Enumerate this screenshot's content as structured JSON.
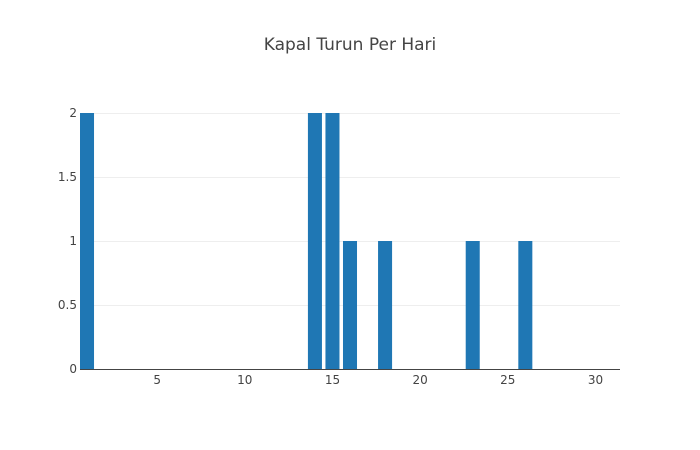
{
  "chart_data": {
    "type": "bar",
    "title": "Kapal Turun Per Hari",
    "xlabel": "",
    "ylabel": "",
    "x": [
      1,
      14,
      15,
      16,
      18,
      23,
      26
    ],
    "values": [
      2,
      2,
      2,
      1,
      1,
      1,
      1
    ],
    "xlim": [
      0.6,
      31.4
    ],
    "ylim": [
      0,
      2
    ],
    "x_ticks": [
      5,
      10,
      15,
      20,
      25,
      30
    ],
    "y_ticks": [
      0,
      0.5,
      1,
      1.5,
      2
    ],
    "y_tick_labels": [
      "0",
      "0.5",
      "1",
      "1.5",
      "2"
    ],
    "bar_color": "#1f77b4",
    "grid": "horizontal",
    "legend": "none"
  }
}
